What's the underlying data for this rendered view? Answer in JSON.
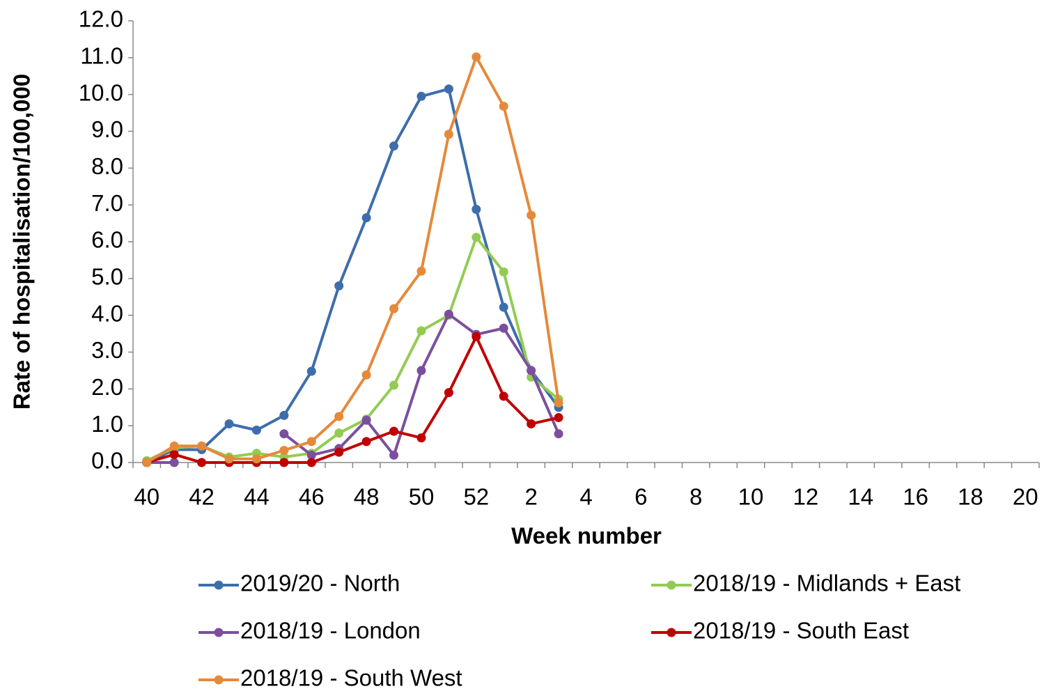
{
  "chart_data": {
    "type": "line",
    "x_label": "Week number",
    "y_label": "Rate of hospitalisation/100,000",
    "categories": [
      "40",
      null,
      "42",
      null,
      "44",
      null,
      "46",
      null,
      "48",
      null,
      "50",
      null,
      "52",
      null,
      "2",
      null,
      "4",
      null,
      "6",
      null,
      "8",
      null,
      "10",
      null,
      "12",
      null,
      "14",
      null,
      "16",
      null,
      "18",
      null,
      "20"
    ],
    "ylim": [
      0,
      12
    ],
    "yticks": [
      {
        "value": 0,
        "label": "0.0"
      },
      {
        "value": 1,
        "label": "1.0"
      },
      {
        "value": 2,
        "label": "2.0"
      },
      {
        "value": 3,
        "label": "3.0"
      },
      {
        "value": 4,
        "label": "4.0"
      },
      {
        "value": 5,
        "label": "5.0"
      },
      {
        "value": 6,
        "label": "6.0"
      },
      {
        "value": 7,
        "label": "7.0"
      },
      {
        "value": 8,
        "label": "8.0"
      },
      {
        "value": 9,
        "label": "9.0"
      },
      {
        "value": 10,
        "label": "10.0"
      },
      {
        "value": 11,
        "label": "11.0"
      },
      {
        "value": 12,
        "label": "12.0"
      }
    ],
    "grid": false,
    "series": [
      {
        "name": "2019/20 - North",
        "color": "#3e6dab",
        "values": [
          0,
          0.35,
          0.35,
          1.05,
          0.88,
          1.28,
          2.48,
          4.8,
          6.65,
          8.6,
          9.95,
          10.15,
          6.88,
          4.22,
          2.5,
          1.5,
          null,
          null,
          null,
          null,
          null,
          null,
          null,
          null,
          null,
          null,
          null,
          null,
          null,
          null,
          null,
          null,
          null
        ]
      },
      {
        "name": "2018/19 - Midlands + East",
        "color": "#92cc52",
        "values": [
          0.05,
          0.4,
          0.45,
          0.15,
          0.25,
          0.15,
          0.25,
          0.8,
          1.18,
          2.1,
          3.58,
          4.0,
          6.12,
          5.18,
          2.32,
          1.72,
          null,
          null,
          null,
          null,
          null,
          null,
          null,
          null,
          null,
          null,
          null,
          null,
          null,
          null,
          null,
          null,
          null
        ]
      },
      {
        "name": "2018/19 - London",
        "color": "#7b4f9d",
        "values": [
          0,
          0,
          null,
          null,
          null,
          0.78,
          0.2,
          0.38,
          1.15,
          0.2,
          2.5,
          4.03,
          3.48,
          3.65,
          2.5,
          0.78,
          null,
          null,
          null,
          null,
          null,
          null,
          null,
          null,
          null,
          null,
          null,
          null,
          null,
          null,
          null,
          null,
          null
        ]
      },
      {
        "name": "2018/19 - South East",
        "color": "#c00000",
        "values": [
          0,
          0.22,
          0,
          0,
          0,
          0,
          0,
          0.28,
          0.57,
          0.85,
          0.67,
          1.9,
          3.42,
          1.8,
          1.05,
          1.22,
          null,
          null,
          null,
          null,
          null,
          null,
          null,
          null,
          null,
          null,
          null,
          null,
          null,
          null,
          null,
          null,
          null
        ]
      },
      {
        "name": "2018/19 - South West",
        "color": "#e5893b",
        "values": [
          0,
          0.45,
          0.45,
          0.1,
          0.1,
          0.33,
          0.57,
          1.25,
          2.38,
          4.18,
          5.2,
          8.92,
          11.02,
          9.68,
          6.72,
          1.62,
          null,
          null,
          null,
          null,
          null,
          null,
          null,
          null,
          null,
          null,
          null,
          null,
          null,
          null,
          null,
          null,
          null
        ]
      }
    ]
  }
}
